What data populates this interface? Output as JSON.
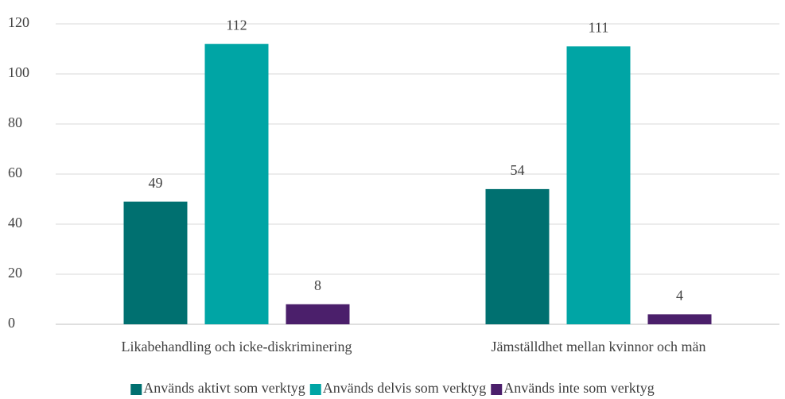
{
  "chart_data": {
    "type": "bar",
    "categories": [
      "Likabehandling och icke-diskriminering",
      "Jämställdhet mellan kvinnor och män"
    ],
    "series": [
      {
        "name": "Används aktivt som verktyg",
        "color": "#007070",
        "values": [
          49,
          54
        ]
      },
      {
        "name": "Används delvis som verktyg",
        "color": "#00a5a5",
        "values": [
          112,
          111
        ]
      },
      {
        "name": "Används inte som verktyg",
        "color": "#4b1f6b",
        "values": [
          8,
          4
        ]
      }
    ],
    "ylim": [
      0,
      120
    ],
    "yticks": [
      0,
      20,
      40,
      60,
      80,
      100,
      120
    ],
    "grid": true,
    "legend": "bottom"
  }
}
